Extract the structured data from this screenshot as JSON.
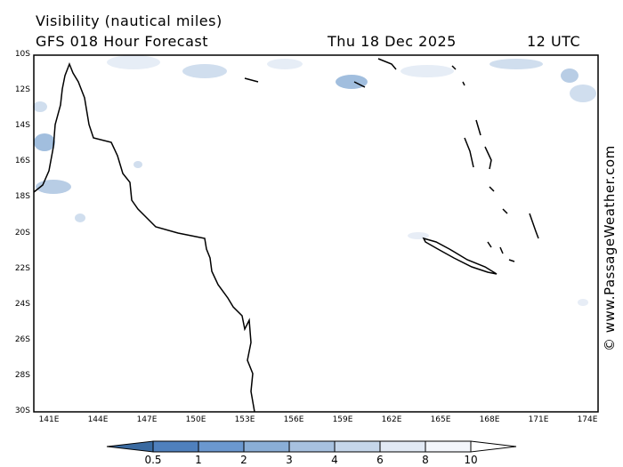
{
  "header": {
    "title": "Visibility (nautical miles)",
    "model": "GFS 018 Hour Forecast",
    "date": "Thu 18 Dec 2025",
    "time": "12 UTC"
  },
  "lat_labels": [
    "10S",
    "12S",
    "14S",
    "16S",
    "18S",
    "20S",
    "22S",
    "24S",
    "26S",
    "28S",
    "30S"
  ],
  "lon_labels": [
    "141E",
    "144E",
    "147E",
    "150E",
    "153E",
    "156E",
    "159E",
    "162E",
    "165E",
    "168E",
    "171E",
    "174E"
  ],
  "colorbar": {
    "labels": [
      "0.5",
      "1",
      "2",
      "3",
      "4",
      "6",
      "8",
      "10"
    ],
    "colors": [
      "#3a6aa0",
      "#4f80bd",
      "#6b98cf",
      "#8aaed6",
      "#a7c1df",
      "#c5d6ea",
      "#e1e9f4",
      "#f3f6fb",
      "#ffffff"
    ]
  },
  "credit": "© www.PassageWeather.com"
}
